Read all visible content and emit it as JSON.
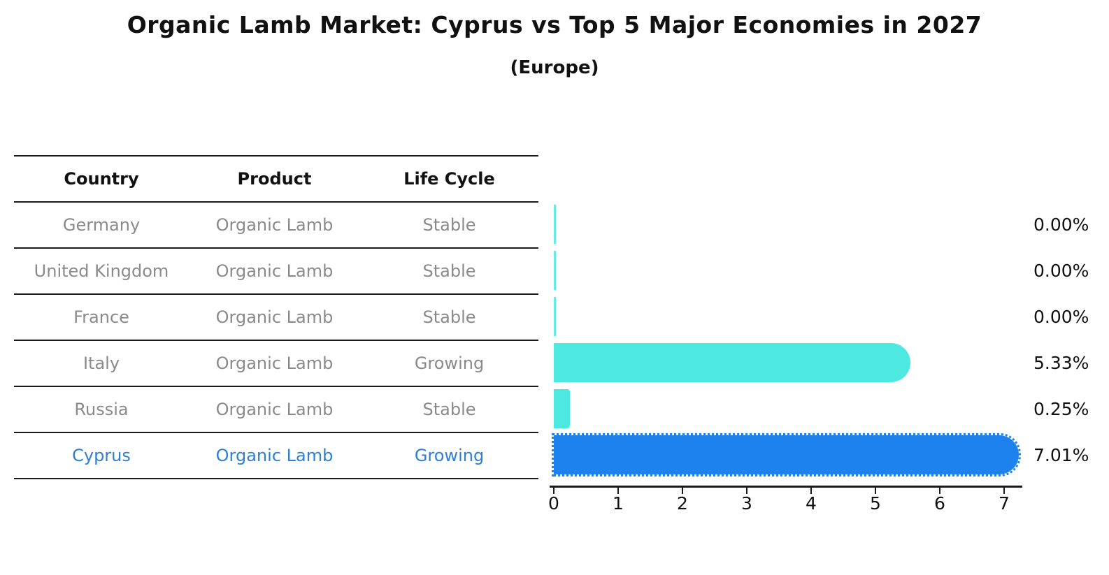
{
  "title": "Organic Lamb Market: Cyprus vs Top 5 Major Economies in 2027",
  "subtitle": "(Europe)",
  "table": {
    "headers": [
      "Country",
      "Product",
      "Life Cycle"
    ],
    "rows": [
      {
        "country": "Germany",
        "product": "Organic Lamb",
        "life_cycle": "Stable",
        "highlighted": false
      },
      {
        "country": "United Kingdom",
        "product": "Organic Lamb",
        "life_cycle": "Stable",
        "highlighted": false
      },
      {
        "country": "France",
        "product": "Organic Lamb",
        "life_cycle": "Stable",
        "highlighted": false
      },
      {
        "country": "Italy",
        "product": "Organic Lamb",
        "life_cycle": "Growing",
        "highlighted": false
      },
      {
        "country": "Russia",
        "product": "Organic Lamb",
        "life_cycle": "Stable",
        "highlighted": false
      },
      {
        "country": "Cyprus",
        "product": "Organic Lamb",
        "life_cycle": "Growing",
        "highlighted": true
      }
    ]
  },
  "chart_data": {
    "type": "bar",
    "orientation": "horizontal",
    "title": "Organic Lamb Market: Cyprus vs Top 5 Major Economies in 2027",
    "subtitle": "(Europe)",
    "categories": [
      "Germany",
      "United Kingdom",
      "France",
      "Italy",
      "Russia",
      "Cyprus"
    ],
    "values": [
      0.0,
      0.0,
      0.0,
      5.33,
      0.25,
      7.01
    ],
    "value_labels": [
      "0.00%",
      "0.00%",
      "0.00%",
      "5.33%",
      "0.25%",
      "7.01%"
    ],
    "highlight_index": 5,
    "x_ticks": [
      "0",
      "1",
      "2",
      "3",
      "4",
      "5",
      "6",
      "7"
    ],
    "xlim": [
      0,
      7.35
    ],
    "grid": false,
    "legend": "none",
    "xlabel": "",
    "ylabel": ""
  },
  "colors": {
    "bar_default": "#4DE8E0",
    "bar_highlight": "#1E82EE",
    "highlight_text": "#2E7FD4",
    "table_text": "#8A8A8A",
    "heading_text": "#111111",
    "axis_line": "#1A1A1A"
  }
}
